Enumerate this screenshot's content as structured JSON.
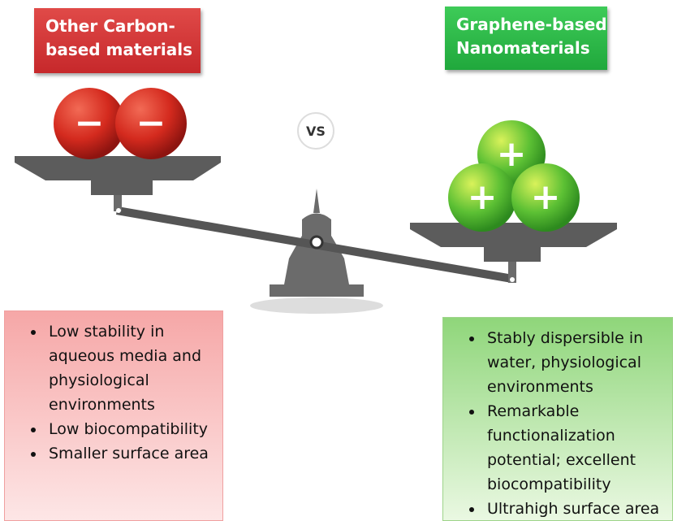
{
  "left": {
    "title_lines": [
      "Other Carbon-",
      "based materials"
    ],
    "charges": [
      "−",
      "−"
    ],
    "points": [
      "Low stability in aqueous media and physiological environments",
      "Low biocompatibility",
      "Smaller surface area"
    ]
  },
  "center": {
    "label": "VS"
  },
  "right": {
    "title_lines": [
      "Graphene-based",
      "Nanomaterials"
    ],
    "charges": [
      "+",
      "+",
      "+"
    ],
    "points": [
      "Stably dispersible in water, physiological environments",
      "Remarkable functionalization potential; excellent biocompatibility",
      "Ultrahigh surface area"
    ]
  }
}
